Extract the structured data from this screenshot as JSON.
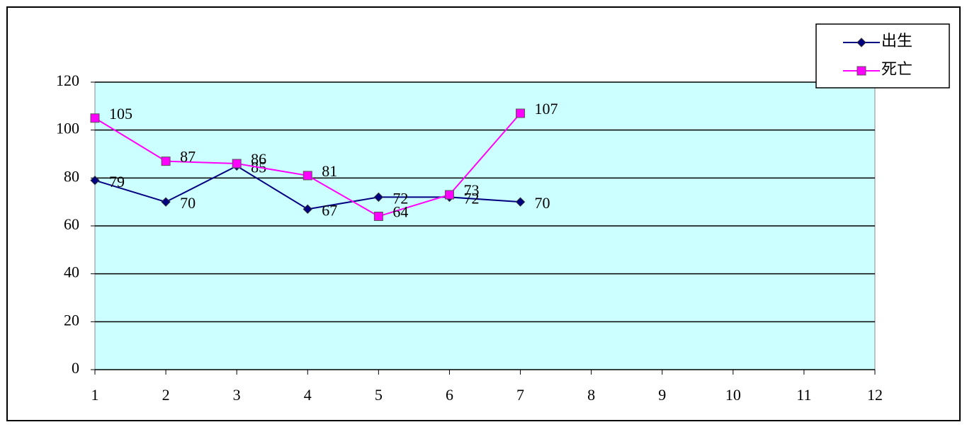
{
  "chart_data": {
    "type": "line",
    "categories": [
      "1",
      "2",
      "3",
      "4",
      "5",
      "6",
      "7",
      "8",
      "9",
      "10",
      "11",
      "12"
    ],
    "series": [
      {
        "name": "出生",
        "color": "#000080",
        "values": [
          79,
          70,
          85,
          67,
          72,
          72,
          70,
          null,
          null,
          null,
          null,
          null
        ]
      },
      {
        "name": "死亡",
        "color": "#ff00ff",
        "values": [
          105,
          87,
          86,
          81,
          64,
          73,
          107,
          null,
          null,
          null,
          null,
          null
        ]
      }
    ],
    "ylim": [
      0,
      120
    ],
    "yticks": [
      0,
      20,
      40,
      60,
      80,
      100,
      120
    ],
    "grid": true,
    "legend": "top-right"
  }
}
